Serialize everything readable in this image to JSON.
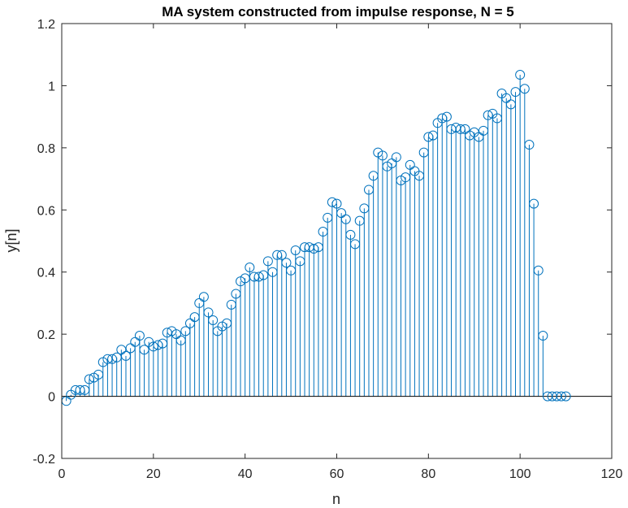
{
  "chart_data": {
    "type": "stem",
    "title": "MA system constructed from impulse response, N = 5",
    "xlabel": "n",
    "ylabel": "y[n]",
    "xlim": [
      0,
      120
    ],
    "ylim": [
      -0.2,
      1.2
    ],
    "xticks": [
      "0",
      "20",
      "40",
      "60",
      "80",
      "100",
      "120"
    ],
    "yticks": [
      "-0.2",
      "0",
      "0.2",
      "0.4",
      "0.6",
      "0.8",
      "1",
      "1.2"
    ],
    "grid": false,
    "legend": "none",
    "color": "#0072BD",
    "series": [
      {
        "x": [
          1,
          2,
          3,
          4,
          5,
          6,
          7,
          8,
          9,
          10,
          11,
          12,
          13,
          14,
          15,
          16,
          17,
          18,
          19,
          20,
          21,
          22,
          23,
          24,
          25,
          26,
          27,
          28,
          29,
          30,
          31,
          32,
          33,
          34,
          35,
          36,
          37,
          38,
          39,
          40,
          41,
          42,
          43,
          44,
          45,
          46,
          47,
          48,
          49,
          50,
          51,
          52,
          53,
          54,
          55,
          56,
          57,
          58,
          59,
          60,
          61,
          62,
          63,
          64,
          65,
          66,
          67,
          68,
          69,
          70,
          71,
          72,
          73,
          74,
          75,
          76,
          77,
          78,
          79,
          80,
          81,
          82,
          83,
          84,
          85,
          86,
          87,
          88,
          89,
          90,
          91,
          92,
          93,
          94,
          95,
          96,
          97,
          98,
          99,
          100,
          101,
          102,
          103,
          104,
          105,
          106,
          107,
          108,
          109,
          110
        ],
        "y": [
          -0.015,
          0.005,
          0.02,
          0.02,
          0.02,
          0.055,
          0.06,
          0.07,
          0.11,
          0.12,
          0.12,
          0.125,
          0.15,
          0.13,
          0.155,
          0.175,
          0.195,
          0.15,
          0.175,
          0.16,
          0.165,
          0.17,
          0.205,
          0.21,
          0.2,
          0.18,
          0.21,
          0.235,
          0.255,
          0.3,
          0.32,
          0.27,
          0.245,
          0.21,
          0.225,
          0.235,
          0.295,
          0.33,
          0.37,
          0.38,
          0.415,
          0.385,
          0.385,
          0.39,
          0.435,
          0.4,
          0.455,
          0.455,
          0.43,
          0.405,
          0.47,
          0.435,
          0.48,
          0.48,
          0.475,
          0.48,
          0.53,
          0.575,
          0.625,
          0.62,
          0.59,
          0.57,
          0.52,
          0.49,
          0.565,
          0.605,
          0.665,
          0.71,
          0.785,
          0.775,
          0.74,
          0.75,
          0.77,
          0.695,
          0.705,
          0.745,
          0.725,
          0.71,
          0.785,
          0.835,
          0.84,
          0.88,
          0.895,
          0.9,
          0.86,
          0.865,
          0.86,
          0.86,
          0.84,
          0.85,
          0.835,
          0.855,
          0.905,
          0.91,
          0.895,
          0.975,
          0.96,
          0.94,
          0.98,
          1.035,
          0.99,
          0.81,
          0.62,
          0.405,
          0.195,
          0.0,
          0.0,
          0.0,
          0.0,
          0.0
        ]
      }
    ]
  }
}
